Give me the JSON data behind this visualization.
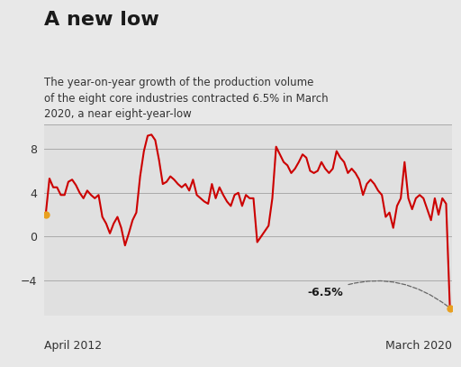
{
  "title": "A new low",
  "subtitle": "The year-on-year growth of the production volume\nof the eight core industries contracted 6.5% in March\n2020, a near eight-year-low",
  "background_color": "#e8e8e8",
  "plot_bg_color": "#e0e0e0",
  "line_color": "#cc0000",
  "line_width": 1.5,
  "marker_color": "#e8a020",
  "marker_size": 6,
  "xlabel_left": "April 2012",
  "xlabel_right": "March 2020",
  "annotation_text": "-6.5%",
  "ylim": [
    -7.2,
    10.2
  ],
  "yticks": [
    -4,
    0,
    4,
    8
  ],
  "values": [
    2.0,
    5.3,
    4.5,
    4.5,
    3.8,
    3.8,
    5.0,
    5.2,
    4.7,
    4.0,
    3.5,
    4.2,
    3.8,
    3.5,
    3.8,
    1.8,
    1.2,
    0.3,
    1.2,
    1.8,
    0.8,
    -0.8,
    0.3,
    1.5,
    2.2,
    5.5,
    7.8,
    9.2,
    9.3,
    8.8,
    7.0,
    4.8,
    5.0,
    5.5,
    5.2,
    4.8,
    4.5,
    4.8,
    4.2,
    5.2,
    3.8,
    3.5,
    3.2,
    3.0,
    4.8,
    3.5,
    4.5,
    3.8,
    3.2,
    2.8,
    3.8,
    4.0,
    2.8,
    3.8,
    3.5,
    3.5,
    -0.5,
    0.0,
    0.5,
    1.0,
    3.5,
    8.2,
    7.5,
    6.8,
    6.5,
    5.8,
    6.2,
    6.8,
    7.5,
    7.2,
    6.0,
    5.8,
    6.0,
    6.8,
    6.2,
    5.8,
    6.2,
    7.8,
    7.2,
    6.8,
    5.8,
    6.2,
    5.8,
    5.2,
    3.8,
    4.8,
    5.2,
    4.8,
    4.2,
    3.8,
    1.8,
    2.2,
    0.8,
    2.8,
    3.5,
    6.8,
    3.5,
    2.5,
    3.5,
    3.8,
    3.5,
    2.5,
    1.5,
    3.5,
    2.0,
    3.5,
    3.0,
    -6.5
  ]
}
